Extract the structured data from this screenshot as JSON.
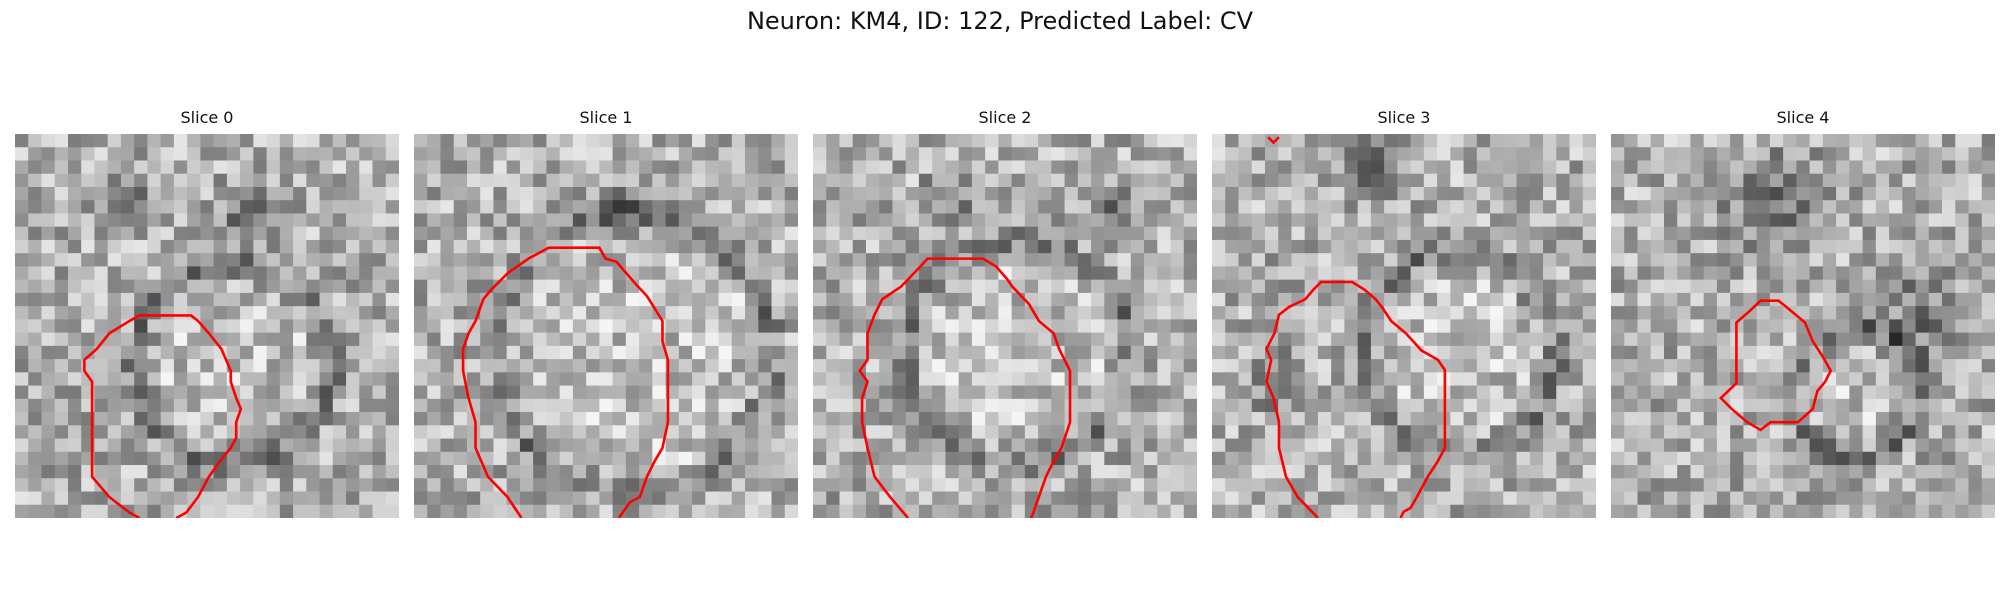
{
  "figure": {
    "title": "Neuron: KM4, ID: 122, Predicted Label: CV"
  },
  "panels": [
    {
      "title": "Slice 0"
    },
    {
      "title": "Slice 1"
    },
    {
      "title": "Slice 2"
    },
    {
      "title": "Slice 3"
    },
    {
      "title": "Slice 4"
    }
  ],
  "colors": {
    "contour": "#ff0000",
    "background": "#ffffff"
  }
}
